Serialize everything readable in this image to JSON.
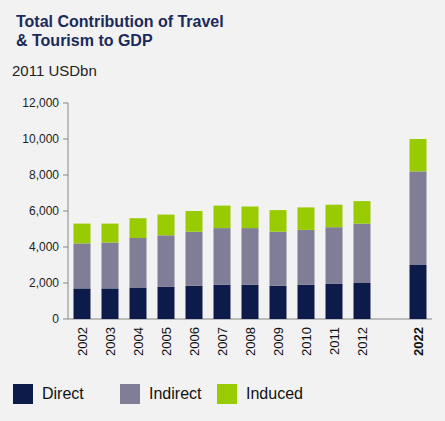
{
  "chart_data": {
    "type": "bar",
    "title": "Total Contribution of Travel & Tourism to GDP",
    "subtitle": "2011 USDbn",
    "stacked": true,
    "grid": false,
    "legend": "bottom",
    "categories": [
      "2002",
      "2003",
      "2004",
      "2005",
      "2006",
      "2007",
      "2008",
      "2009",
      "2010",
      "2011",
      "2012",
      null,
      "2022"
    ],
    "series": [
      {
        "name": "Direct",
        "color": "#0d1b4b",
        "values": [
          1700,
          1700,
          1750,
          1800,
          1850,
          1900,
          1900,
          1850,
          1900,
          1950,
          2000,
          null,
          3000
        ]
      },
      {
        "name": "Indirect",
        "color": "#807d97",
        "values": [
          2500,
          2550,
          2750,
          2850,
          3000,
          3150,
          3150,
          3000,
          3050,
          3150,
          3300,
          null,
          5200
        ]
      },
      {
        "name": "Induced",
        "color": "#99cc00",
        "values": [
          1100,
          1050,
          1100,
          1150,
          1150,
          1250,
          1200,
          1200,
          1250,
          1250,
          1250,
          null,
          1800
        ]
      }
    ],
    "ylim": [
      0,
      12000
    ],
    "yticks": [
      0,
      {
        "value": 2000,
        "label": "2,000"
      },
      {
        "value": 4000,
        "label": "4,000"
      },
      {
        "value": 6000,
        "label": "6,000"
      },
      {
        "value": 8000,
        "label": "8,000"
      },
      {
        "value": 10000,
        "label": "10,000"
      },
      {
        "value": 12000,
        "label": "12,000"
      }
    ]
  }
}
